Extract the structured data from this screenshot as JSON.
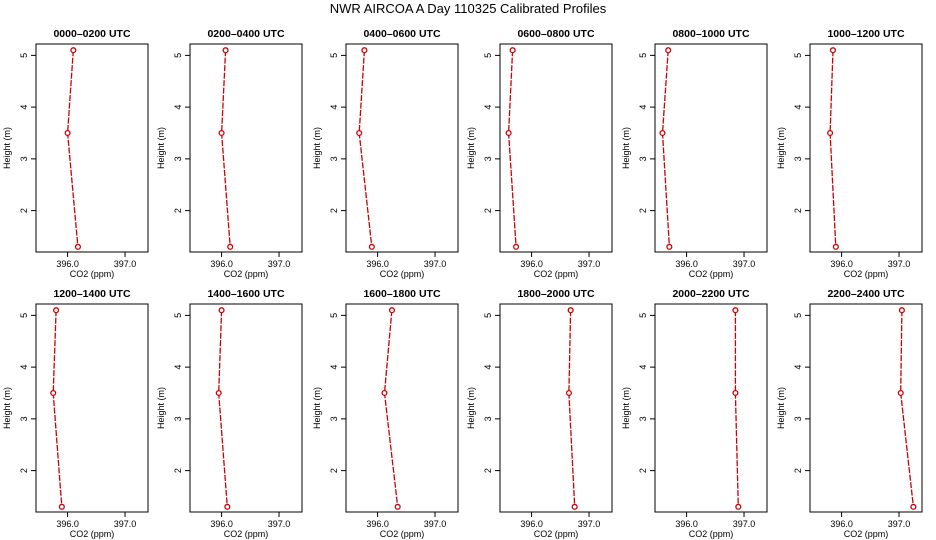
{
  "title": "NWR AIRCOA A  Day 110325  Calibrated Profiles",
  "chart_data": {
    "type": "line",
    "xlabel": "CO2 (ppm)",
    "ylabel": "Height (m)",
    "xlim": [
      395.45,
      397.4
    ],
    "ylim": [
      1.2,
      5.22
    ],
    "xticks": [
      396.0,
      397.0
    ],
    "xtick_labels": [
      "396.0",
      "397.0"
    ],
    "yticks": [
      2,
      3,
      4,
      5
    ],
    "ytick_labels": [
      "2",
      "3",
      "4",
      "5"
    ],
    "heights": [
      5.1,
      3.5,
      1.3
    ],
    "line_color": "#cc0000",
    "panels": [
      {
        "title": "0000–0200 UTC",
        "co2": [
          396.1,
          396.0,
          396.18
        ]
      },
      {
        "title": "0200–0400 UTC",
        "co2": [
          396.07,
          396.0,
          396.15
        ]
      },
      {
        "title": "0400–0600 UTC",
        "co2": [
          395.77,
          395.68,
          395.9
        ]
      },
      {
        "title": "0600–0800 UTC",
        "co2": [
          395.67,
          395.6,
          395.73
        ]
      },
      {
        "title": "0800–1000 UTC",
        "co2": [
          395.68,
          395.58,
          395.7
        ]
      },
      {
        "title": "1000–1200 UTC",
        "co2": [
          395.85,
          395.8,
          395.9
        ]
      },
      {
        "title": "1200–1400 UTC",
        "co2": [
          395.8,
          395.75,
          395.9
        ]
      },
      {
        "title": "1400–1600 UTC",
        "co2": [
          396.0,
          395.95,
          396.1
        ]
      },
      {
        "title": "1600–1800 UTC",
        "co2": [
          396.25,
          396.12,
          396.35
        ]
      },
      {
        "title": "1800–2000 UTC",
        "co2": [
          396.68,
          396.65,
          396.75
        ]
      },
      {
        "title": "2000–2200 UTC",
        "co2": [
          396.85,
          396.85,
          396.9
        ]
      },
      {
        "title": "2200–2400 UTC",
        "co2": [
          397.05,
          397.03,
          397.25
        ]
      }
    ]
  }
}
